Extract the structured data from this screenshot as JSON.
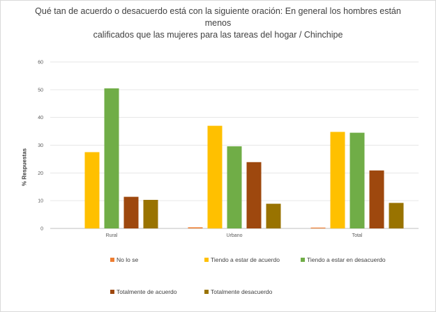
{
  "chart_data": {
    "type": "bar",
    "title_lines": [
      "Qué tan de acuerdo o desacuerdo está con la siguiente oración: En general los hombres están menos",
      "calificados que las mujeres para las tareas del hogar / Chinchipe"
    ],
    "ylabel": "% Respuestas",
    "xlabel": "",
    "ylim": [
      0,
      60
    ],
    "yticks": [
      "0",
      "10",
      "20",
      "30",
      "40",
      "50",
      "60"
    ],
    "ytick_values": [
      0,
      10,
      20,
      30,
      40,
      50,
      60
    ],
    "grid": true,
    "legend_position": "bottom",
    "categories": [
      "Rural",
      "Urbano",
      "Total"
    ],
    "series": [
      {
        "name": "No lo se",
        "color": "#ed7d31",
        "values": [
          0,
          0.4,
          0.3
        ]
      },
      {
        "name": "Tiendo a estar de acuerdo",
        "color": "#ffc000",
        "values": [
          27.5,
          37,
          34.8
        ]
      },
      {
        "name": "Tiendo a estar en desacuerdo",
        "color": "#70ad47",
        "values": [
          50.5,
          29.6,
          34.5
        ]
      },
      {
        "name": "Totalmente de acuerdo",
        "color": "#9e480e",
        "values": [
          11.4,
          23.9,
          20.9
        ]
      },
      {
        "name": "Totalmente desacuerdo",
        "color": "#997300",
        "values": [
          10.3,
          8.9,
          9.2
        ]
      }
    ]
  }
}
